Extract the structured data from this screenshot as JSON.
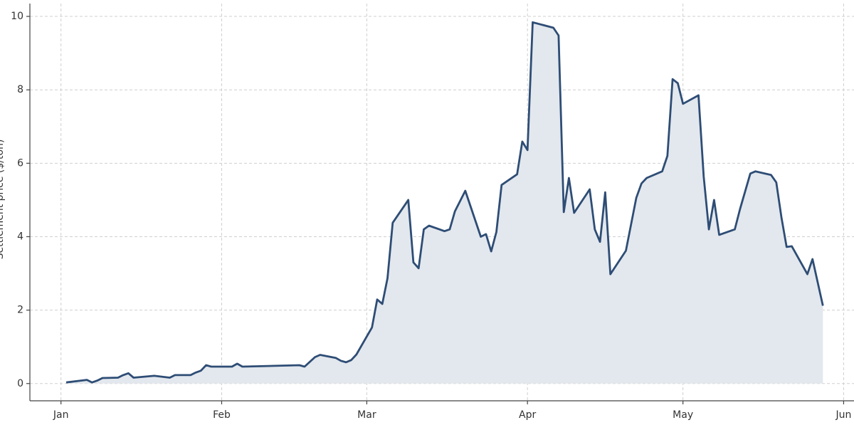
{
  "chart_data": {
    "type": "area",
    "ylabel": "Settlement price ($/ton)",
    "x": [
      1,
      5,
      6,
      7,
      8,
      11,
      12,
      13,
      14,
      18,
      21,
      22,
      25,
      26,
      27,
      28,
      29,
      33,
      34,
      35,
      46,
      47,
      49,
      50,
      53,
      54,
      55,
      56,
      57,
      60,
      61,
      62,
      63,
      64,
      67,
      68,
      69,
      70,
      71,
      74,
      75,
      76,
      78,
      81,
      82,
      83,
      84,
      85,
      88,
      89,
      90,
      91,
      95,
      96,
      97,
      98,
      99,
      102,
      103,
      104,
      105,
      106,
      109,
      111,
      112,
      113,
      116,
      117,
      118,
      119,
      120,
      123,
      124,
      125,
      126,
      127,
      130,
      131,
      133,
      134,
      137,
      138,
      139,
      140,
      141,
      144,
      145,
      147
    ],
    "series": [
      {
        "name": "Settlement price",
        "color": "#2e4d75",
        "fill": "#e3e8ee",
        "values": [
          0.03,
          0.1,
          0.03,
          0.08,
          0.15,
          0.16,
          0.23,
          0.28,
          0.16,
          0.21,
          0.16,
          0.23,
          0.23,
          0.3,
          0.35,
          0.5,
          0.46,
          0.46,
          0.54,
          0.46,
          0.5,
          0.46,
          0.72,
          0.78,
          0.7,
          0.62,
          0.58,
          0.64,
          0.79,
          1.53,
          2.29,
          2.17,
          2.87,
          4.38,
          5.0,
          3.3,
          3.14,
          4.2,
          4.3,
          4.15,
          4.2,
          4.69,
          5.25,
          4.0,
          4.07,
          3.6,
          4.13,
          5.41,
          5.7,
          6.59,
          6.36,
          9.84,
          9.69,
          9.48,
          4.67,
          5.6,
          4.65,
          5.29,
          4.2,
          3.86,
          5.21,
          2.98,
          3.62,
          5.06,
          5.45,
          5.6,
          5.78,
          6.2,
          8.29,
          8.18,
          7.62,
          7.85,
          5.64,
          4.2,
          5.0,
          4.05,
          4.2,
          4.75,
          5.72,
          5.78,
          5.68,
          5.48,
          4.53,
          3.72,
          3.74,
          2.98,
          3.39,
          2.12
        ]
      }
    ],
    "xlim": [
      -6,
      153
    ],
    "xticks": [
      {
        "value": 0,
        "label": "Jan"
      },
      {
        "value": 31,
        "label": "Feb"
      },
      {
        "value": 59,
        "label": "Mar"
      },
      {
        "value": 90,
        "label": "Apr"
      },
      {
        "value": 120,
        "label": "May"
      },
      {
        "value": 151,
        "label": "Jun"
      }
    ],
    "ylim": [
      -0.47,
      10.35
    ],
    "yticks": [
      0,
      2,
      4,
      6,
      8,
      10
    ],
    "grid": true
  }
}
